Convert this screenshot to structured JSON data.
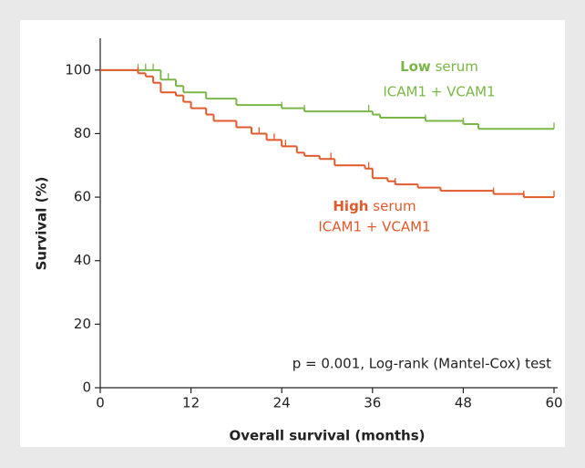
{
  "chart_data": {
    "type": "step",
    "x_label": "Overall survival (months)",
    "y_label": "Survival (%)",
    "annotation": "p = 0.001, Log-rank (Mantel-Cox) test",
    "xlim": [
      0,
      60
    ],
    "xticks": [
      0,
      12,
      24,
      36,
      48,
      60
    ],
    "ylim": [
      0,
      110
    ],
    "yticks": [
      0,
      20,
      40,
      60,
      80,
      100
    ],
    "series": [
      {
        "name": "Low",
        "name_rest": "serum",
        "subname": "ICAM1 + VCAM1",
        "color": "#7ab648",
        "x": [
          0,
          8,
          10,
          11,
          14,
          18,
          24,
          27,
          36,
          37,
          43,
          48,
          50
        ],
        "values": [
          100,
          97,
          95,
          93,
          91,
          89,
          88,
          87,
          86,
          85,
          84,
          83,
          81.5
        ],
        "censored": {
          "x": [
            5,
            6,
            7,
            9,
            24,
            27,
            35.5,
            43,
            48,
            60
          ],
          "values": [
            100,
            100,
            100,
            97,
            88,
            87,
            87,
            84,
            83,
            81.5
          ]
        }
      },
      {
        "name": "High",
        "name_rest": "serum",
        "subname": "ICAM1 + VCAM1",
        "color": "#e05a2b",
        "x": [
          0,
          5,
          6,
          7,
          8,
          10,
          11,
          12,
          14,
          15,
          18,
          20,
          22,
          24,
          26,
          27,
          29,
          31,
          35,
          36,
          38,
          39,
          42,
          45,
          52,
          56
        ],
        "values": [
          100,
          99,
          98,
          96,
          93,
          92,
          90,
          88,
          86,
          84,
          82,
          80,
          78,
          76,
          74,
          73,
          72,
          70,
          69,
          66,
          65,
          64,
          63,
          62,
          61,
          60
        ],
        "censored": {
          "x": [
            5,
            21,
            23,
            24.5,
            30.5,
            35.5,
            39,
            52,
            56,
            60
          ],
          "values": [
            99,
            80,
            78,
            76,
            72,
            69,
            64,
            61,
            60,
            60
          ]
        }
      }
    ]
  }
}
